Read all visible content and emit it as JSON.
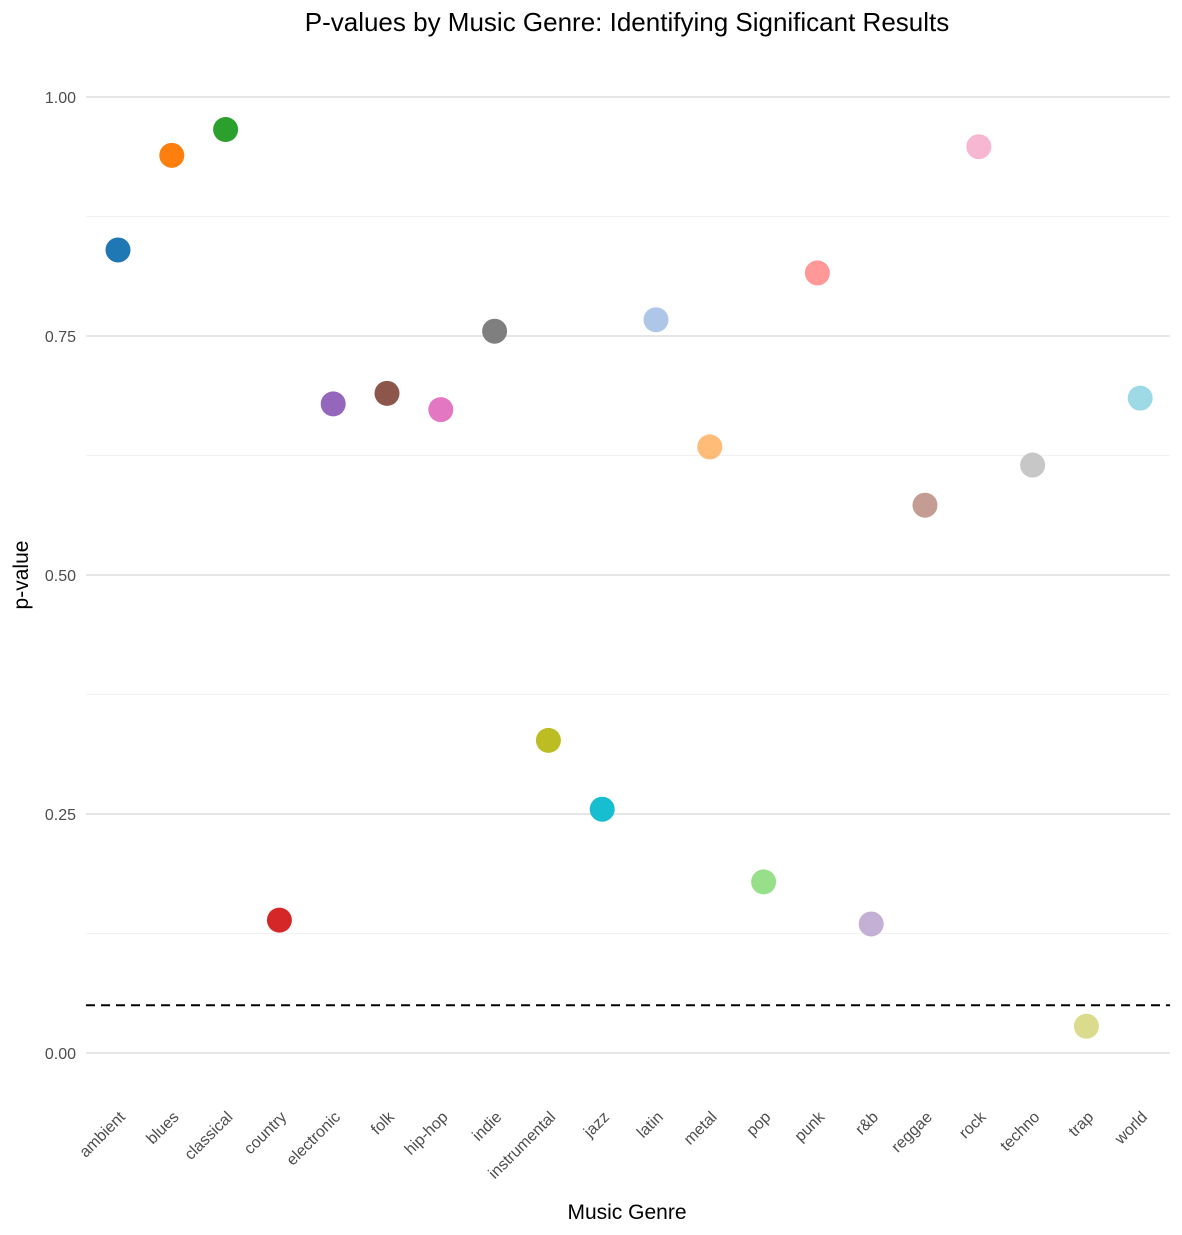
{
  "chart_data": {
    "type": "scatter",
    "title": "P-values by Music Genre: Identifying Significant Results",
    "xlabel": "Music Genre",
    "ylabel": "p-value",
    "ylim": [
      -0.07,
      1.07
    ],
    "yticks": [
      "0.00",
      "0.25",
      "0.50",
      "0.75",
      "1.00"
    ],
    "grid": true,
    "legend": "none",
    "threshold": 0.05,
    "categories": [
      "ambient",
      "blues",
      "classical",
      "country",
      "electronic",
      "folk",
      "hip-hop",
      "indie",
      "instrumental",
      "jazz",
      "latin",
      "metal",
      "pop",
      "punk",
      "r&b",
      "reggae",
      "rock",
      "techno",
      "trap",
      "world"
    ],
    "values": [
      0.84,
      0.939,
      0.966,
      0.139,
      0.679,
      0.69,
      0.673,
      0.755,
      0.327,
      0.255,
      0.767,
      0.634,
      0.179,
      0.816,
      0.135,
      0.573,
      0.948,
      0.615,
      0.028,
      0.685
    ],
    "colors": [
      "#1f77b4",
      "#ff7f0e",
      "#2ca02c",
      "#d62728",
      "#9467bd",
      "#8c564b",
      "#e377c2",
      "#7f7f7f",
      "#bcbd22",
      "#17becf",
      "#aec7e8",
      "#ffbb78",
      "#98df8a",
      "#ff9896",
      "#c5b0d5",
      "#c49c94",
      "#f7b6d2",
      "#c7c7c7",
      "#dbdb8d",
      "#9edae5"
    ]
  }
}
